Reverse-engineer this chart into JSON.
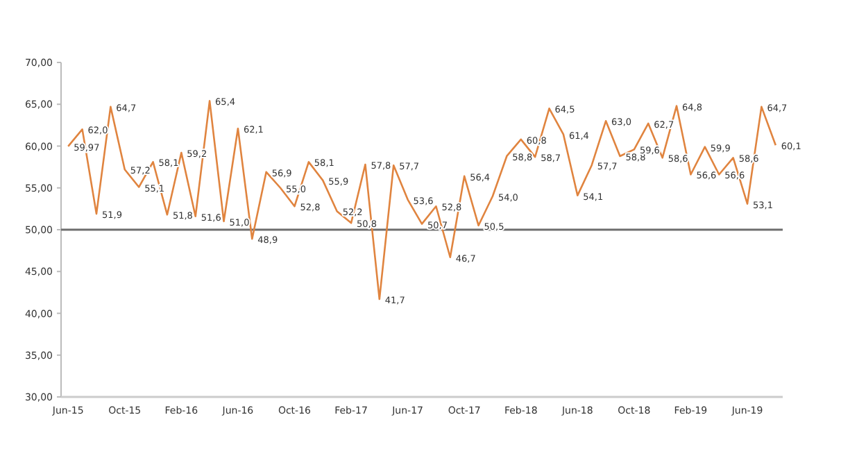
{
  "chart_data": {
    "type": "line",
    "categories": [
      "Jun-15",
      null,
      null,
      null,
      "Oct-15",
      null,
      null,
      null,
      "Feb-16",
      null,
      null,
      null,
      "Jun-16",
      null,
      null,
      null,
      "Oct-16",
      null,
      null,
      null,
      "Feb-17",
      null,
      null,
      null,
      "Jun-17",
      null,
      null,
      null,
      "Oct-17",
      null,
      null,
      null,
      "Feb-18",
      null,
      null,
      null,
      "Jun-18",
      null,
      null,
      null,
      "Oct-18",
      null,
      null,
      null,
      "Feb-19",
      null,
      null,
      null,
      "Jun-19",
      null,
      null
    ],
    "series": [
      {
        "color": "#e0843f",
        "values": [
          59.97,
          62.0,
          51.9,
          64.7,
          57.2,
          55.1,
          58.1,
          51.8,
          59.2,
          51.6,
          65.4,
          51.0,
          62.1,
          48.9,
          56.9,
          55.0,
          52.8,
          58.1,
          55.9,
          52.2,
          50.8,
          57.8,
          41.7,
          57.7,
          53.6,
          50.7,
          52.8,
          46.7,
          56.4,
          50.5,
          54.0,
          58.8,
          60.8,
          58.7,
          64.5,
          61.4,
          54.1,
          57.7,
          63.0,
          58.8,
          59.6,
          62.7,
          58.6,
          64.8,
          56.6,
          59.9,
          56.6,
          58.6,
          53.1,
          64.7,
          60.1
        ],
        "value_labels": [
          "59,97",
          "62,0",
          "51,9",
          "64,7",
          "57,2",
          "55,1",
          "58,1",
          "51,8",
          "59,2",
          "51,6",
          "65,4",
          "51,0",
          "62,1",
          "48,9",
          "56,9",
          "55,0",
          "52,8",
          "58,1",
          "55,9",
          "52,2",
          "50,8",
          "57,8",
          "41,7",
          "57,7",
          "53,6",
          "50,7",
          "52,8",
          "46,7",
          "56,4",
          "50,5",
          "54,0",
          "58,8",
          "60,8",
          "58,7",
          "64,5",
          "61,4",
          "54,1",
          "57,7",
          "63,0",
          "58,8",
          "59,6",
          "62,7",
          "58,6",
          "64,8",
          "56,6",
          "59,9",
          "56,6",
          "58,6",
          "53,1",
          "64,7",
          "60,1"
        ]
      }
    ],
    "ylim": [
      30,
      70
    ],
    "yticks": [
      {
        "value": 30,
        "label": "30,00"
      },
      {
        "value": 35,
        "label": "35,00"
      },
      {
        "value": 40,
        "label": "40,00"
      },
      {
        "value": 45,
        "label": "45,00"
      },
      {
        "value": 50,
        "label": "50,00"
      },
      {
        "value": 55,
        "label": "55,00"
      },
      {
        "value": 60,
        "label": "60,00"
      },
      {
        "value": 65,
        "label": "65,00"
      },
      {
        "value": 70,
        "label": "70,00"
      }
    ],
    "ref_lines": [
      {
        "axis": "y",
        "value": 50,
        "color": "#6e6e6e"
      }
    ],
    "grid": false,
    "marker": "none",
    "line_style": "solid"
  }
}
